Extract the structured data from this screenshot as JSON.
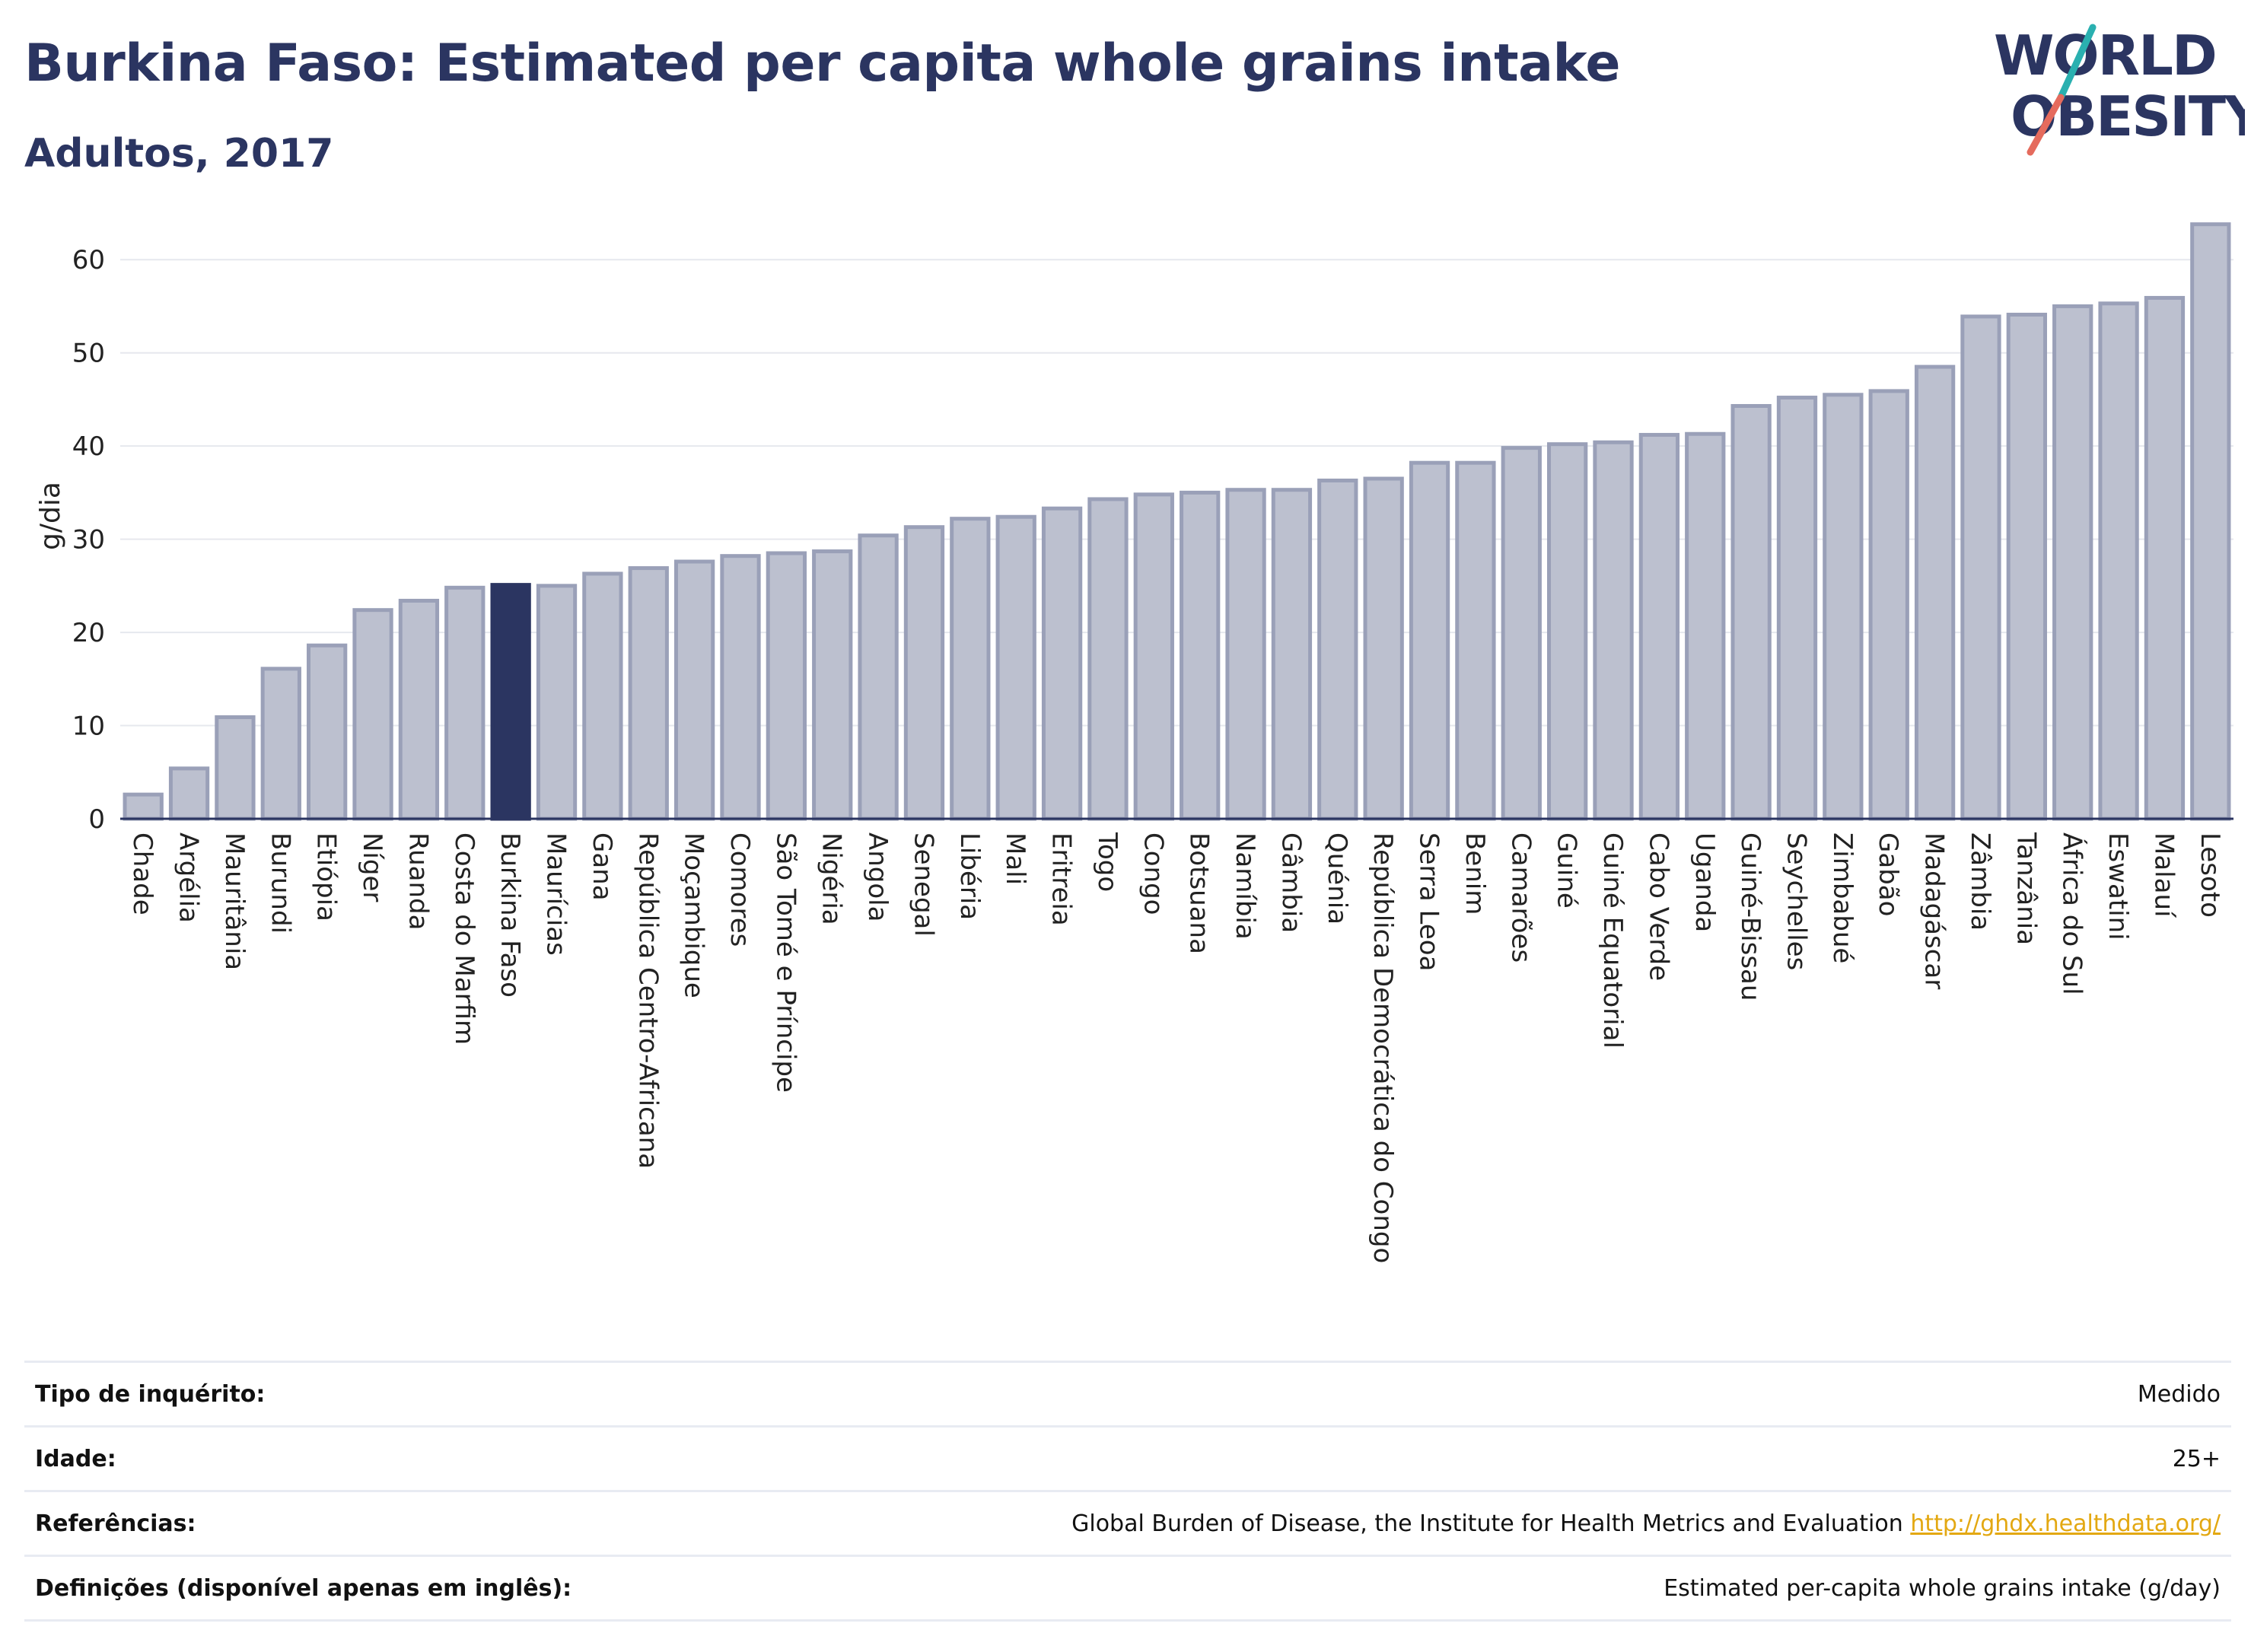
{
  "header": {
    "title": "Burkina Faso: Estimated per capita whole grains intake",
    "subtitle": "Adultos, 2017"
  },
  "logo": {
    "line1": "WORLD",
    "line2": "OBESITY"
  },
  "colors": {
    "bar": "#bcc0cf",
    "bar_border": "#9aa0b8",
    "highlight": "#2b3561",
    "accent_teal": "#2ab0b0",
    "accent_red": "#e56b5d"
  },
  "chart_data": {
    "type": "bar",
    "highlight": "Burkina Faso",
    "ylabel": "g/dia",
    "ylim": [
      0,
      65
    ],
    "yticks": [
      0,
      10,
      20,
      30,
      40,
      50,
      60
    ],
    "grid": true,
    "categories": [
      "Chade",
      "Argélia",
      "Mauritânia",
      "Burundi",
      "Etiópia",
      "Níger",
      "Ruanda",
      "Costa do Marfim",
      "Burkina Faso",
      "Maurícias",
      "Gana",
      "República Centro-Africana",
      "Moçambique",
      "Comores",
      "São Tomé e Príncipe",
      "Nigéria",
      "Angola",
      "Senegal",
      "Libéria",
      "Mali",
      "Eritreia",
      "Togo",
      "Congo",
      "Botsuana",
      "Namíbia",
      "Gâmbia",
      "Quénia",
      "República Democrática do Congo",
      "Serra Leoa",
      "Benim",
      "Camarões",
      "Guiné",
      "Guiné Equatorial",
      "Cabo Verde",
      "Uganda",
      "Guiné-Bissau",
      "Seychelles",
      "Zimbabué",
      "Gabão",
      "Madagáscar",
      "Zâmbia",
      "Tanzânia",
      "África do Sul",
      "Eswatini",
      "Malauí",
      "Lesoto"
    ],
    "values": [
      2.6,
      5.4,
      10.9,
      16.1,
      18.6,
      22.4,
      23.4,
      24.8,
      25.1,
      25.0,
      26.3,
      26.9,
      27.6,
      28.2,
      28.5,
      28.7,
      30.4,
      31.3,
      32.2,
      32.4,
      33.3,
      34.3,
      34.8,
      35.0,
      35.3,
      35.3,
      36.3,
      36.5,
      38.2,
      38.2,
      39.8,
      40.2,
      40.4,
      41.2,
      41.3,
      44.3,
      45.2,
      45.5,
      45.9,
      48.5,
      53.9,
      54.1,
      55.0,
      55.3,
      55.9,
      63.8
    ]
  },
  "info": {
    "rows": [
      {
        "label": "Tipo de inquérito:",
        "value": "Medido"
      },
      {
        "label": "Idade:",
        "value": "25+"
      },
      {
        "label": "Referências:",
        "value": "Global Burden of Disease, the Institute for Health Metrics and Evaluation",
        "link": "http://ghdx.healthdata.org/"
      },
      {
        "label": "Definições (disponível apenas em inglês):",
        "value": "Estimated per-capita whole grains intake (g/day)"
      }
    ]
  }
}
